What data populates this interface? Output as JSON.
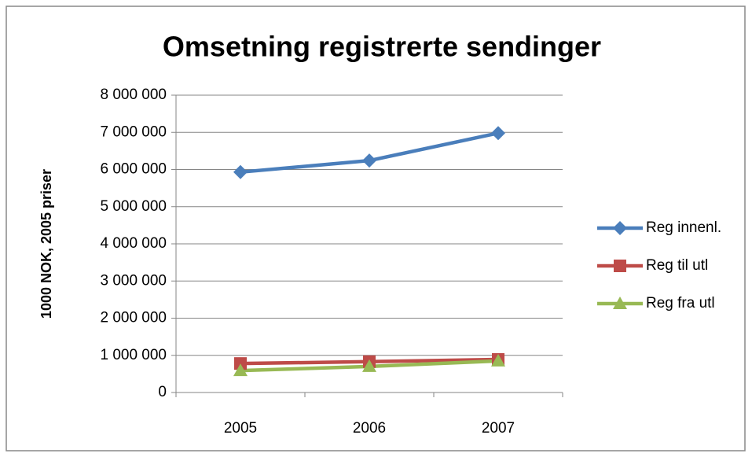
{
  "chart_data": {
    "type": "line",
    "title": "Omsetning registrerte sendinger",
    "y_label": "1000 NOK, 2005 priser",
    "categories": [
      "2005",
      "2006",
      "2007"
    ],
    "series": [
      {
        "name": "Reg innenl.",
        "color": "#4a7ebb",
        "marker": "diamond",
        "values": [
          5930000,
          6240000,
          6980000
        ]
      },
      {
        "name": "Reg til utl",
        "color": "#be4b48",
        "marker": "square",
        "values": [
          780000,
          830000,
          890000
        ]
      },
      {
        "name": "Reg fra utl",
        "color": "#98b954",
        "marker": "triangle",
        "values": [
          590000,
          700000,
          850000
        ]
      }
    ],
    "ylim": [
      0,
      8000000
    ],
    "yticks": [
      0,
      {
        "value": 1000000,
        "label": "1 000 000"
      },
      {
        "value": 2000000,
        "label": "2 000 000"
      },
      {
        "value": 3000000,
        "label": "3 000 000"
      },
      {
        "value": 4000000,
        "label": "4 000 000"
      },
      {
        "value": 5000000,
        "label": "5 000 000"
      },
      {
        "value": 6000000,
        "label": "6 000 000"
      },
      {
        "value": 7000000,
        "label": "7 000 000"
      },
      {
        "value": 8000000,
        "label": "8 000 000"
      }
    ],
    "grid": true,
    "legend": "right"
  }
}
